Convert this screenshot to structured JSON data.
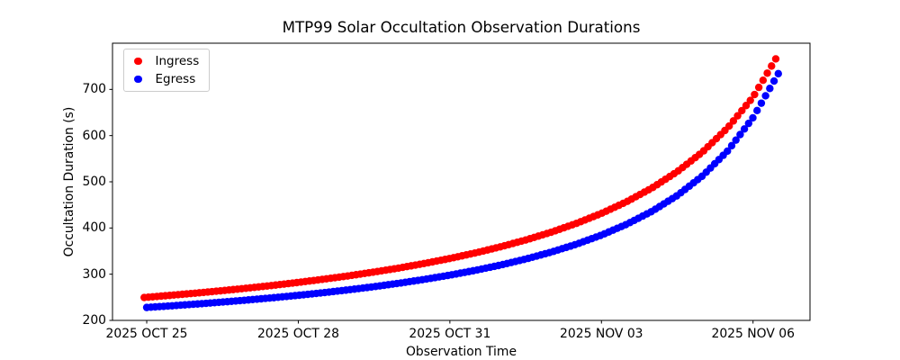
{
  "chart_data": {
    "type": "scatter",
    "title": "MTP99 Solar Occultation Observation Durations",
    "xlabel": "Observation Time",
    "ylabel": "Occultation Duration (s)",
    "x_axis_unit": "days since 2025 OCT 25",
    "xlim_days": [
      -0.6775,
      13.1275
    ],
    "ylim": [
      200,
      800
    ],
    "x_ticks": [
      {
        "day": 0,
        "label": "2025 OCT 25"
      },
      {
        "day": 3,
        "label": "2025 OCT 28"
      },
      {
        "day": 6,
        "label": "2025 OCT 31"
      },
      {
        "day": 9,
        "label": "2025 NOV 03"
      },
      {
        "day": 12,
        "label": "2025 NOV 06"
      }
    ],
    "y_ticks": [
      200,
      300,
      400,
      500,
      600,
      700
    ],
    "n_points_per_series": 150,
    "series": [
      {
        "name": "Ingress",
        "color": "#ff0000",
        "x_range_days": [
          -0.05,
          12.45
        ],
        "anchors_day_value": [
          [
            -0.05,
            249.6
          ],
          [
            0.5,
            254.5
          ],
          [
            1.0,
            259.3
          ],
          [
            1.5,
            264.4
          ],
          [
            2.0,
            269.9
          ],
          [
            2.5,
            275.8
          ],
          [
            3.0,
            282.2
          ],
          [
            3.5,
            289.1
          ],
          [
            4.0,
            296.5
          ],
          [
            4.5,
            304.7
          ],
          [
            5.0,
            313.5
          ],
          [
            5.5,
            323.3
          ],
          [
            6.0,
            334.0
          ],
          [
            6.5,
            345.9
          ],
          [
            7.0,
            359.2
          ],
          [
            7.5,
            374.0
          ],
          [
            8.0,
            390.7
          ],
          [
            8.5,
            409.8
          ],
          [
            9.0,
            431.6
          ],
          [
            9.5,
            456.9
          ],
          [
            10.0,
            486.6
          ],
          [
            10.5,
            521.9
          ],
          [
            11.0,
            564.5
          ],
          [
            11.5,
            617.0
          ],
          [
            12.0,
            683.3
          ],
          [
            12.45,
            766.0
          ]
        ]
      },
      {
        "name": "Egress",
        "color": "#0000ff",
        "x_range_days": [
          0.0,
          12.5
        ],
        "anchors_day_value": [
          [
            0.0,
            228.0
          ],
          [
            0.5,
            231.6
          ],
          [
            1.0,
            235.5
          ],
          [
            1.5,
            239.7
          ],
          [
            2.0,
            244.2
          ],
          [
            2.5,
            249.0
          ],
          [
            3.0,
            254.3
          ],
          [
            3.5,
            260.0
          ],
          [
            4.0,
            266.2
          ],
          [
            4.5,
            273.0
          ],
          [
            5.0,
            280.5
          ],
          [
            5.5,
            288.8
          ],
          [
            6.0,
            298.0
          ],
          [
            6.5,
            308.2
          ],
          [
            7.0,
            319.7
          ],
          [
            7.5,
            332.7
          ],
          [
            8.0,
            347.6
          ],
          [
            8.5,
            364.7
          ],
          [
            9.0,
            384.6
          ],
          [
            9.5,
            408.1
          ],
          [
            10.0,
            436.1
          ],
          [
            10.5,
            470.3
          ],
          [
            11.0,
            512.8
          ],
          [
            11.5,
            567.1
          ],
          [
            12.0,
            638.9
          ],
          [
            12.5,
            734.0
          ]
        ]
      }
    ],
    "legend_position": "upper left",
    "grid": false
  },
  "legend": {
    "items": [
      {
        "label": "Ingress",
        "color": "#ff0000"
      },
      {
        "label": "Egress",
        "color": "#0000ff"
      }
    ]
  }
}
